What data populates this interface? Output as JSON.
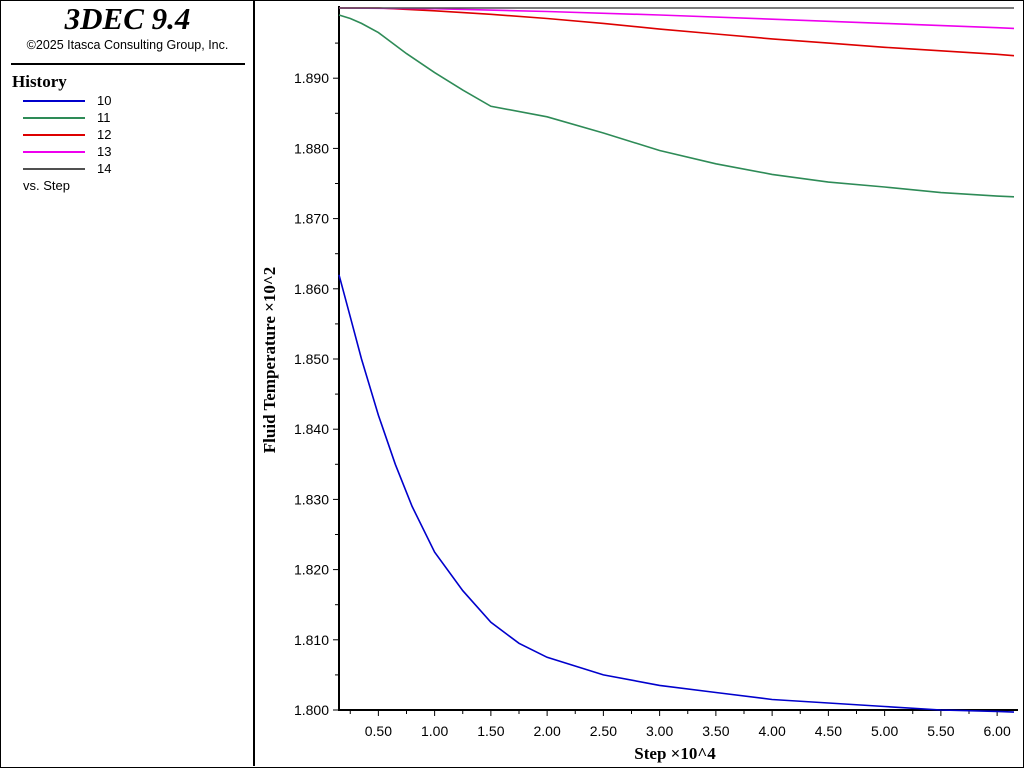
{
  "app": {
    "title": "3DEC 9.4",
    "copyright": "©2025 Itasca Consulting Group, Inc."
  },
  "legend": {
    "heading": "History",
    "items": [
      {
        "label": "10",
        "color": "#0000cc"
      },
      {
        "label": "11",
        "color": "#2e8b57"
      },
      {
        "label": "12",
        "color": "#dd0000"
      },
      {
        "label": "13",
        "color": "#ee00ee"
      },
      {
        "label": "14",
        "color": "#505050"
      }
    ],
    "x_variable": "vs. Step"
  },
  "chart_data": {
    "type": "line",
    "xlabel": "Step ×10^4",
    "ylabel": "Fluid Temperature ×10^2",
    "xlim": [
      0.15,
      6.15
    ],
    "ylim": [
      1.8,
      1.9
    ],
    "xticks": [
      "0.50",
      "1.00",
      "1.50",
      "2.00",
      "2.50",
      "3.00",
      "3.50",
      "4.00",
      "4.50",
      "5.00",
      "5.50",
      "6.00"
    ],
    "yticks": [
      "1.800",
      "1.810",
      "1.820",
      "1.830",
      "1.840",
      "1.850",
      "1.860",
      "1.870",
      "1.880",
      "1.890"
    ],
    "grid": false,
    "series": [
      {
        "name": "10",
        "color": "#0000cc",
        "x": [
          0.15,
          0.25,
          0.35,
          0.5,
          0.65,
          0.8,
          1.0,
          1.25,
          1.5,
          1.75,
          2.0,
          2.5,
          3.0,
          3.5,
          4.0,
          4.5,
          5.0,
          5.5,
          6.0,
          6.15
        ],
        "y": [
          1.862,
          1.856,
          1.85,
          1.842,
          1.835,
          1.829,
          1.8225,
          1.817,
          1.8125,
          1.8095,
          1.8075,
          1.805,
          1.8035,
          1.8025,
          1.8015,
          1.801,
          1.8005,
          1.8,
          1.7998,
          1.7997
        ]
      },
      {
        "name": "11",
        "color": "#2e8b57",
        "x": [
          0.15,
          0.25,
          0.35,
          0.5,
          0.75,
          1.0,
          1.25,
          1.5,
          2.0,
          2.5,
          3.0,
          3.5,
          4.0,
          4.5,
          5.0,
          5.5,
          6.0,
          6.15
        ],
        "y": [
          1.899,
          1.8985,
          1.8978,
          1.8965,
          1.8935,
          1.8908,
          1.8883,
          1.886,
          1.8845,
          1.8822,
          1.8797,
          1.8778,
          1.8763,
          1.8752,
          1.8745,
          1.8737,
          1.8732,
          1.8731
        ]
      },
      {
        "name": "12",
        "color": "#dd0000",
        "x": [
          0.15,
          0.5,
          1.0,
          1.5,
          2.0,
          2.5,
          3.0,
          3.5,
          4.0,
          4.5,
          5.0,
          5.5,
          6.0,
          6.15
        ],
        "y": [
          1.9,
          1.9,
          1.8996,
          1.8991,
          1.8985,
          1.8978,
          1.897,
          1.8963,
          1.8956,
          1.895,
          1.8944,
          1.8939,
          1.8934,
          1.8932
        ]
      },
      {
        "name": "13",
        "color": "#ee00ee",
        "x": [
          0.15,
          1.0,
          2.0,
          3.0,
          4.0,
          5.0,
          6.0,
          6.15
        ],
        "y": [
          1.9,
          1.8999,
          1.8995,
          1.899,
          1.8984,
          1.8978,
          1.8972,
          1.8971
        ]
      },
      {
        "name": "14",
        "color": "#505050",
        "x": [
          0.15,
          6.15
        ],
        "y": [
          1.9,
          1.9
        ]
      }
    ]
  }
}
